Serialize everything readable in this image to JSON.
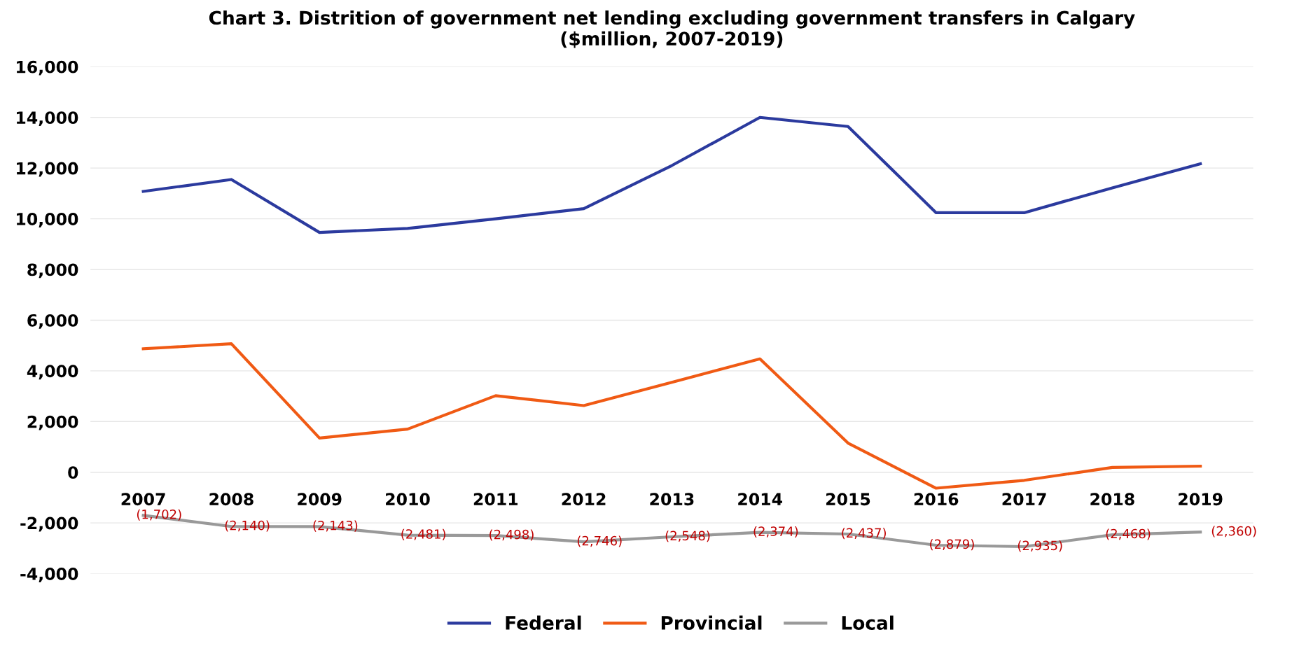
{
  "chart_data": {
    "type": "line",
    "title": "Chart 3. Distrition of government net lending excluding government transfers in Calgary\n($million, 2007-2019)",
    "categories": [
      "2007",
      "2008",
      "2009",
      "2010",
      "2011",
      "2012",
      "2013",
      "2014",
      "2015",
      "2016",
      "2017",
      "2018",
      "2019"
    ],
    "series": [
      {
        "name": "Federal",
        "color": "#2b3a9e",
        "values": [
          11080,
          11550,
          9460,
          9620,
          10000,
          10400,
          12100,
          14000,
          13640,
          10240,
          10240,
          11220,
          12170
        ]
      },
      {
        "name": "Provincial",
        "color": "#f05a14",
        "values": [
          4870,
          5070,
          1350,
          1700,
          3020,
          2630,
          3550,
          4470,
          1150,
          -630,
          -320,
          190,
          240
        ]
      },
      {
        "name": "Local",
        "color": "#999999",
        "values": [
          -1702,
          -2140,
          -2143,
          -2481,
          -2498,
          -2746,
          -2548,
          -2374,
          -2437,
          -2879,
          -2935,
          -2468,
          -2360
        ],
        "value_labels": [
          "(1,702)",
          "(2,140)",
          "(2,143)",
          "(2,481)",
          "(2,498)",
          "(2,746)",
          "(2,548)",
          "(2,374)",
          "(2,437)",
          "(2,879)",
          "(2,935)",
          "(2,468)",
          "(2,360)"
        ]
      }
    ],
    "ylim": [
      -4000,
      16000
    ],
    "yticks": [
      {
        "value": -4000,
        "label": "-4,000"
      },
      {
        "value": -2000,
        "label": "-2,000"
      },
      {
        "value": 0,
        "label": "0"
      },
      {
        "value": 2000,
        "label": "2,000"
      },
      {
        "value": 4000,
        "label": "4,000"
      },
      {
        "value": 6000,
        "label": "6,000"
      },
      {
        "value": 8000,
        "label": "8,000"
      },
      {
        "value": 10000,
        "label": "10,000"
      },
      {
        "value": 12000,
        "label": "12,000"
      },
      {
        "value": 14000,
        "label": "14,000"
      },
      {
        "value": 16000,
        "label": "16,000"
      }
    ],
    "grid": "y",
    "legend": "bottom",
    "marker": "none",
    "line_style": "solid"
  }
}
